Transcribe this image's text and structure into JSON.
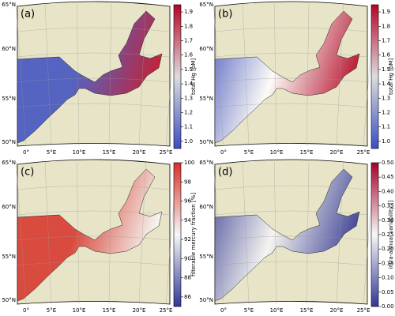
{
  "panels": [
    {
      "label": "(a)",
      "colorbar": {
        "label": "total Hg [pM]",
        "lim": [
          0.95,
          1.95
        ],
        "ticks": [
          {
            "value": 1,
            "label": "1.0"
          },
          1.1,
          1.2,
          1.3,
          1.4,
          1.5,
          1.6,
          1.7,
          1.8,
          1.9
        ],
        "colors": [
          "#3b4cc0",
          "#dddddd",
          "#b40426"
        ]
      }
    },
    {
      "label": "(b)",
      "colorbar": {
        "label": "total Hg [pM]",
        "lim": [
          0.95,
          1.95
        ],
        "ticks": [
          {
            "value": 1,
            "label": "1.0"
          },
          1.1,
          1.2,
          1.3,
          1.4,
          1.5,
          1.6,
          1.7,
          1.8,
          1.9
        ],
        "colors": [
          "#3b4cc0",
          "#dddddd",
          "#b40426"
        ]
      }
    },
    {
      "label": "(c)",
      "colorbar": {
        "label": "filterable mercury fraction [%]",
        "lim": [
          85,
          100
        ],
        "ticks": [
          86,
          88,
          90,
          92,
          94,
          96,
          98,
          100
        ],
        "colors": [
          "#313695",
          "#f7f7f7",
          "#d73027"
        ]
      }
    },
    {
      "label": "(d)",
      "colorbar": {
        "label": "intra-annual variability []",
        "lim": [
          0,
          0.5
        ],
        "ticks": [
          {
            "value": 0,
            "label": "0.00"
          },
          0.05,
          {
            "value": 0.1,
            "label": "0.10"
          },
          0.15,
          {
            "value": 0.2,
            "label": "0.20"
          },
          0.25,
          {
            "value": 0.3,
            "label": "0.30"
          },
          0.35,
          {
            "value": 0.4,
            "label": "0.40"
          },
          0.45,
          {
            "value": 0.5,
            "label": "0.50"
          }
        ],
        "colors": [
          "#313695",
          "#f7f7f7",
          "#a50026"
        ]
      }
    }
  ],
  "lat_labels": [
    "65°N",
    "60°N",
    "55°N",
    "50°N"
  ],
  "lon_labels": [
    "0°",
    "5°E",
    "10°E",
    "15°E",
    "20°E",
    "25°E"
  ]
}
